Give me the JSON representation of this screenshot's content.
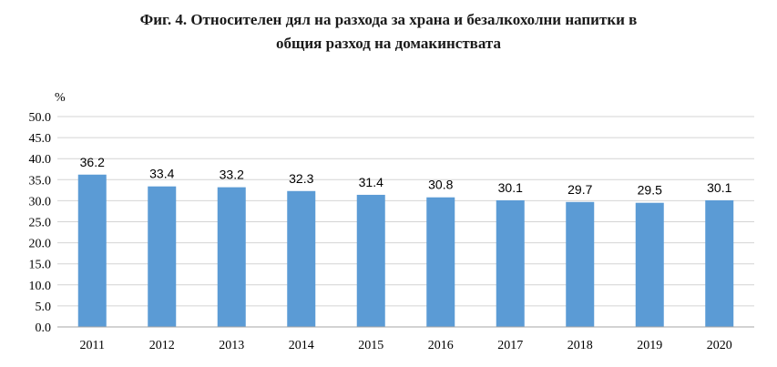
{
  "title_line1": "Фиг. 4. Относителен дял на разхода за храна и безалкохолни напитки в",
  "title_line2": "общия разход на домакинствата",
  "chart_data": {
    "type": "bar",
    "title": "Фиг. 4. Относителен дял на разхода за храна и безалкохолни напитки в общия разход на домакинствата",
    "ylabel": "%",
    "xlabel": "",
    "categories": [
      "2011",
      "2012",
      "2013",
      "2014",
      "2015",
      "2016",
      "2017",
      "2018",
      "2019",
      "2020"
    ],
    "values": [
      36.2,
      33.4,
      33.2,
      32.3,
      31.4,
      30.8,
      30.1,
      29.7,
      29.5,
      30.1
    ],
    "value_labels": [
      "36.2",
      "33.4",
      "33.2",
      "32.3",
      "31.4",
      "30.8",
      "30.1",
      "29.7",
      "29.5",
      "30.1"
    ],
    "ylim": [
      0,
      50
    ],
    "yticks": [
      "0.0",
      "5.0",
      "10.0",
      "15.0",
      "20.0",
      "25.0",
      "30.0",
      "35.0",
      "40.0",
      "45.0",
      "50.0"
    ],
    "bar_color": "#5B9BD5",
    "grid": true,
    "legend": "none"
  }
}
